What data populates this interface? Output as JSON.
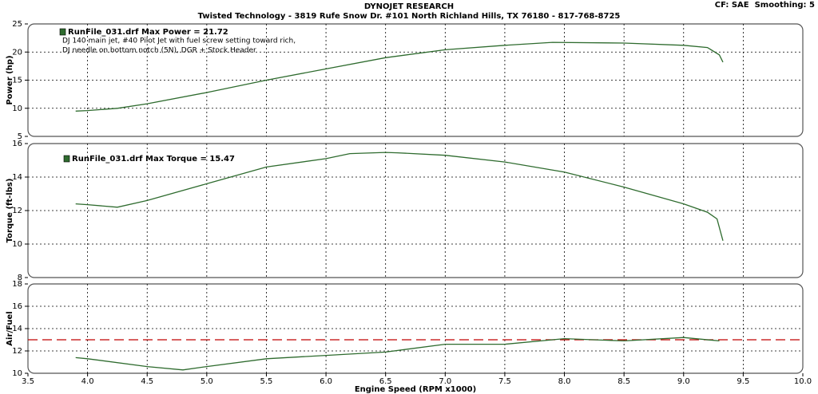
{
  "header": {
    "title": "DYNOJET RESEARCH",
    "subtitle": "Twisted Technology - 3819 Rufe Snow Dr. #101 North Richland Hills, TX 76180 - 817-768-8725",
    "settings": "CF: SAE  Smoothing: 5"
  },
  "x_axis": {
    "label": "Engine Speed (RPM x1000)",
    "xlim": [
      3.5,
      10
    ],
    "xticks": [
      3.5,
      {
        "value": 4,
        "label": "4.0"
      },
      4.5,
      {
        "value": 5,
        "label": "5.0"
      },
      5.5,
      {
        "value": 6,
        "label": "6.0"
      },
      6.5,
      {
        "value": 7,
        "label": "7.0"
      },
      7.5,
      {
        "value": 8,
        "label": "8.0"
      },
      8.5,
      {
        "value": 9,
        "label": "9.0"
      },
      9.5,
      {
        "value": 10,
        "label": "10.0"
      }
    ]
  },
  "chart_data": [
    {
      "type": "line",
      "ylabel": "Power (hp)",
      "ylim": [
        5,
        25
      ],
      "yticks": [
        5,
        10,
        15,
        20,
        25
      ],
      "grid": true,
      "annotations": [
        "DJ 140 main jet, #40 Pilot Jet with fuel screw setting toward rich,",
        "DJ needle on bottom notch (5N), DGR + Stock Header"
      ],
      "x": [
        3.9,
        4.0,
        4.25,
        4.5,
        5.0,
        5.5,
        6.0,
        6.5,
        7.0,
        7.5,
        7.9,
        8.5,
        9.0,
        9.2,
        9.3,
        9.33
      ],
      "series": [
        {
          "name": "RunFile_031.drf Max Power = 21.72",
          "color": "#2e6b2e",
          "values": [
            9.5,
            9.6,
            10.0,
            10.8,
            12.8,
            15.0,
            17.0,
            19.0,
            20.4,
            21.2,
            21.72,
            21.6,
            21.2,
            20.8,
            19.5,
            18.2
          ]
        }
      ]
    },
    {
      "type": "line",
      "ylabel": "Torque (ft-lbs)",
      "ylim": [
        8,
        16
      ],
      "yticks": [
        8,
        10,
        12,
        14,
        16
      ],
      "grid": true,
      "x": [
        3.9,
        4.0,
        4.25,
        4.5,
        5.0,
        5.5,
        6.0,
        6.2,
        6.5,
        6.6,
        7.0,
        7.5,
        8.0,
        8.5,
        9.0,
        9.2,
        9.28,
        9.33
      ],
      "series": [
        {
          "name": "RunFile_031.drf Max Torque = 15.47",
          "color": "#2e6b2e",
          "values": [
            12.4,
            12.35,
            12.2,
            12.6,
            13.6,
            14.6,
            15.1,
            15.4,
            15.47,
            15.45,
            15.3,
            14.9,
            14.3,
            13.4,
            12.4,
            11.9,
            11.5,
            10.2
          ]
        }
      ]
    },
    {
      "type": "line",
      "ylabel": "Air/Fuel",
      "ylim": [
        10,
        18
      ],
      "yticks": [
        10,
        12,
        14,
        16,
        18
      ],
      "grid": true,
      "reference_line": {
        "value": 13,
        "color": "#c00000"
      },
      "x": [
        3.9,
        4.0,
        4.5,
        4.8,
        5.0,
        5.5,
        6.0,
        6.5,
        7.0,
        7.5,
        8.0,
        8.5,
        9.0,
        9.3
      ],
      "series": [
        {
          "color": "#2e6b2e",
          "values": [
            11.4,
            11.3,
            10.6,
            10.3,
            10.6,
            11.3,
            11.6,
            11.9,
            12.6,
            12.6,
            13.1,
            12.9,
            13.2,
            12.9
          ]
        }
      ]
    }
  ]
}
